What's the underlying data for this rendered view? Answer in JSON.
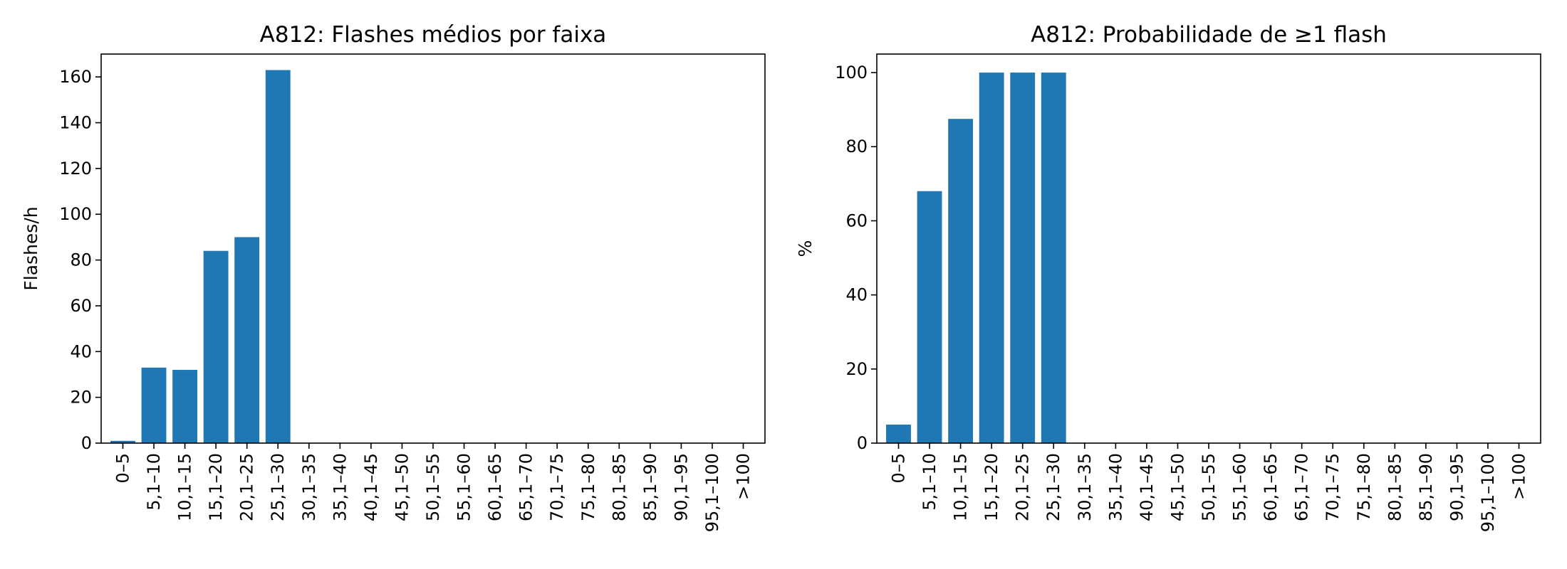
{
  "chart_data": [
    {
      "type": "bar",
      "title": "A812: Flashes médios por faixa",
      "xlabel": "",
      "ylabel": "Flashes/h",
      "ylim": [
        0,
        170
      ],
      "yticks": [
        0,
        20,
        40,
        60,
        80,
        100,
        120,
        140,
        160
      ],
      "grid": false,
      "color": "#1f77b4",
      "categories": [
        "0–5",
        "5,1–10",
        "10,1–15",
        "15,1–20",
        "20,1–25",
        "25,1–30",
        "30,1–35",
        "35,1–40",
        "40,1–45",
        "45,1–50",
        "50,1–55",
        "55,1–60",
        "60,1–65",
        "65,1–70",
        "70,1–75",
        "75,1–80",
        "80,1–85",
        "85,1–90",
        "90,1–95",
        "95,1–100",
        ">100"
      ],
      "values": [
        1,
        33,
        32,
        84,
        90,
        163,
        0,
        0,
        0,
        0,
        0,
        0,
        0,
        0,
        0,
        0,
        0,
        0,
        0,
        0,
        0
      ]
    },
    {
      "type": "bar",
      "title": "A812: Probabilidade de ≥1 flash",
      "xlabel": "",
      "ylabel": "%",
      "ylim": [
        0,
        105
      ],
      "yticks": [
        0,
        20,
        40,
        60,
        80,
        100
      ],
      "grid": false,
      "color": "#1f77b4",
      "categories": [
        "0–5",
        "5,1–10",
        "10,1–15",
        "15,1–20",
        "20,1–25",
        "25,1–30",
        "30,1–35",
        "35,1–40",
        "40,1–45",
        "45,1–50",
        "50,1–55",
        "55,1–60",
        "60,1–65",
        "65,1–70",
        "70,1–75",
        "75,1–80",
        "80,1–85",
        "85,1–90",
        "90,1–95",
        "95,1–100",
        ">100"
      ],
      "values": [
        5,
        68,
        87.5,
        100,
        100,
        100,
        0,
        0,
        0,
        0,
        0,
        0,
        0,
        0,
        0,
        0,
        0,
        0,
        0,
        0,
        0
      ]
    }
  ]
}
